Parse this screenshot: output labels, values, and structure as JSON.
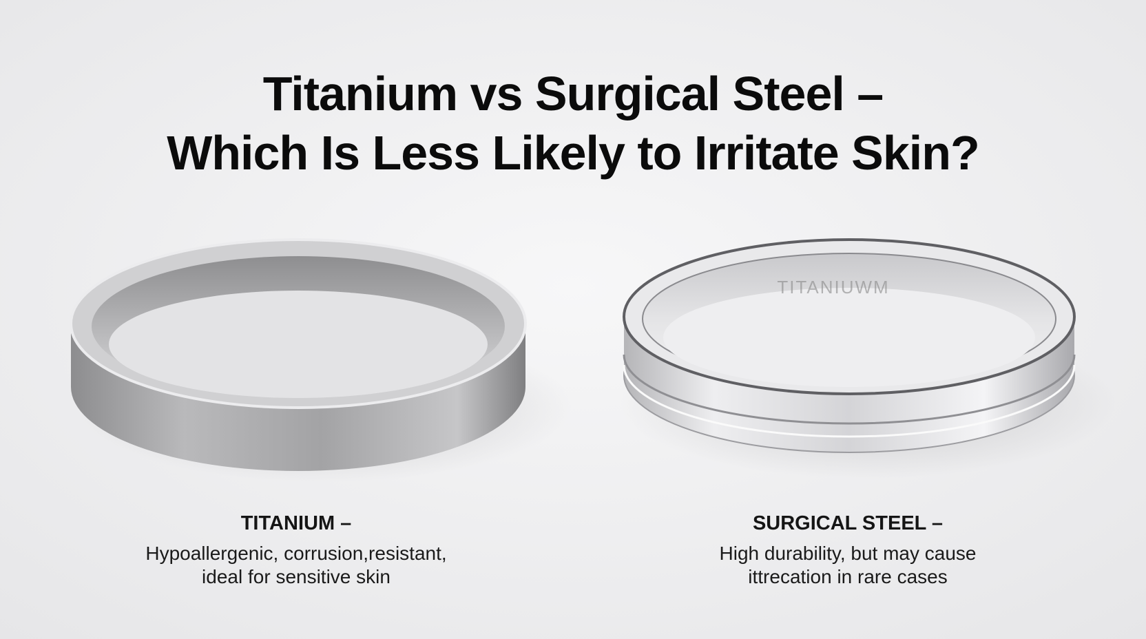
{
  "header": {
    "title_lines": [
      "Titanium vs Surgical Steel –",
      "Which Is Less Likely to Irritate Skin?"
    ]
  },
  "rings": [
    {
      "label": "TITANIUM –",
      "description_lines": [
        "Hypoallergenic, corrusion,resistant,",
        "ideal for sensitive skin"
      ]
    },
    {
      "label": "SURGICAL STEEL –",
      "description_lines": [
        "High durability, but may cause",
        "ittrecation in rare cases"
      ],
      "engraving": "TITANIUWM"
    }
  ]
}
